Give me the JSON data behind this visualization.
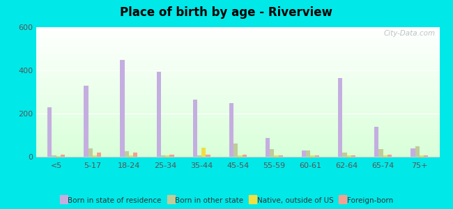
{
  "title": "Place of birth by age - Riverview",
  "categories": [
    "<5",
    "5-17",
    "18-24",
    "25-34",
    "35-44",
    "45-54",
    "55-59",
    "60-61",
    "62-64",
    "65-74",
    "75+"
  ],
  "born_in_state": [
    230,
    330,
    450,
    395,
    265,
    248,
    88,
    28,
    365,
    140,
    38
  ],
  "born_other_state": [
    5,
    38,
    25,
    8,
    8,
    60,
    35,
    30,
    20,
    35,
    48
  ],
  "native_outside_us": [
    3,
    5,
    5,
    5,
    42,
    8,
    8,
    5,
    5,
    5,
    5
  ],
  "foreign_born": [
    10,
    18,
    20,
    10,
    10,
    10,
    8,
    8,
    8,
    10,
    8
  ],
  "colors": {
    "born_in_state": "#c4aee0",
    "born_other_state": "#c0cc9a",
    "native_outside_us": "#f0e040",
    "foreign_born": "#f4a090"
  },
  "ylim": [
    0,
    600
  ],
  "yticks": [
    0,
    200,
    400,
    600
  ],
  "outer_background": "#00e8e8",
  "watermark": "City-Data.com",
  "bar_width": 0.12,
  "figsize": [
    6.5,
    3.0
  ],
  "dpi": 100,
  "legend_labels": [
    "Born in state of residence",
    "Born in other state",
    "Native, outside of US",
    "Foreign-born"
  ]
}
